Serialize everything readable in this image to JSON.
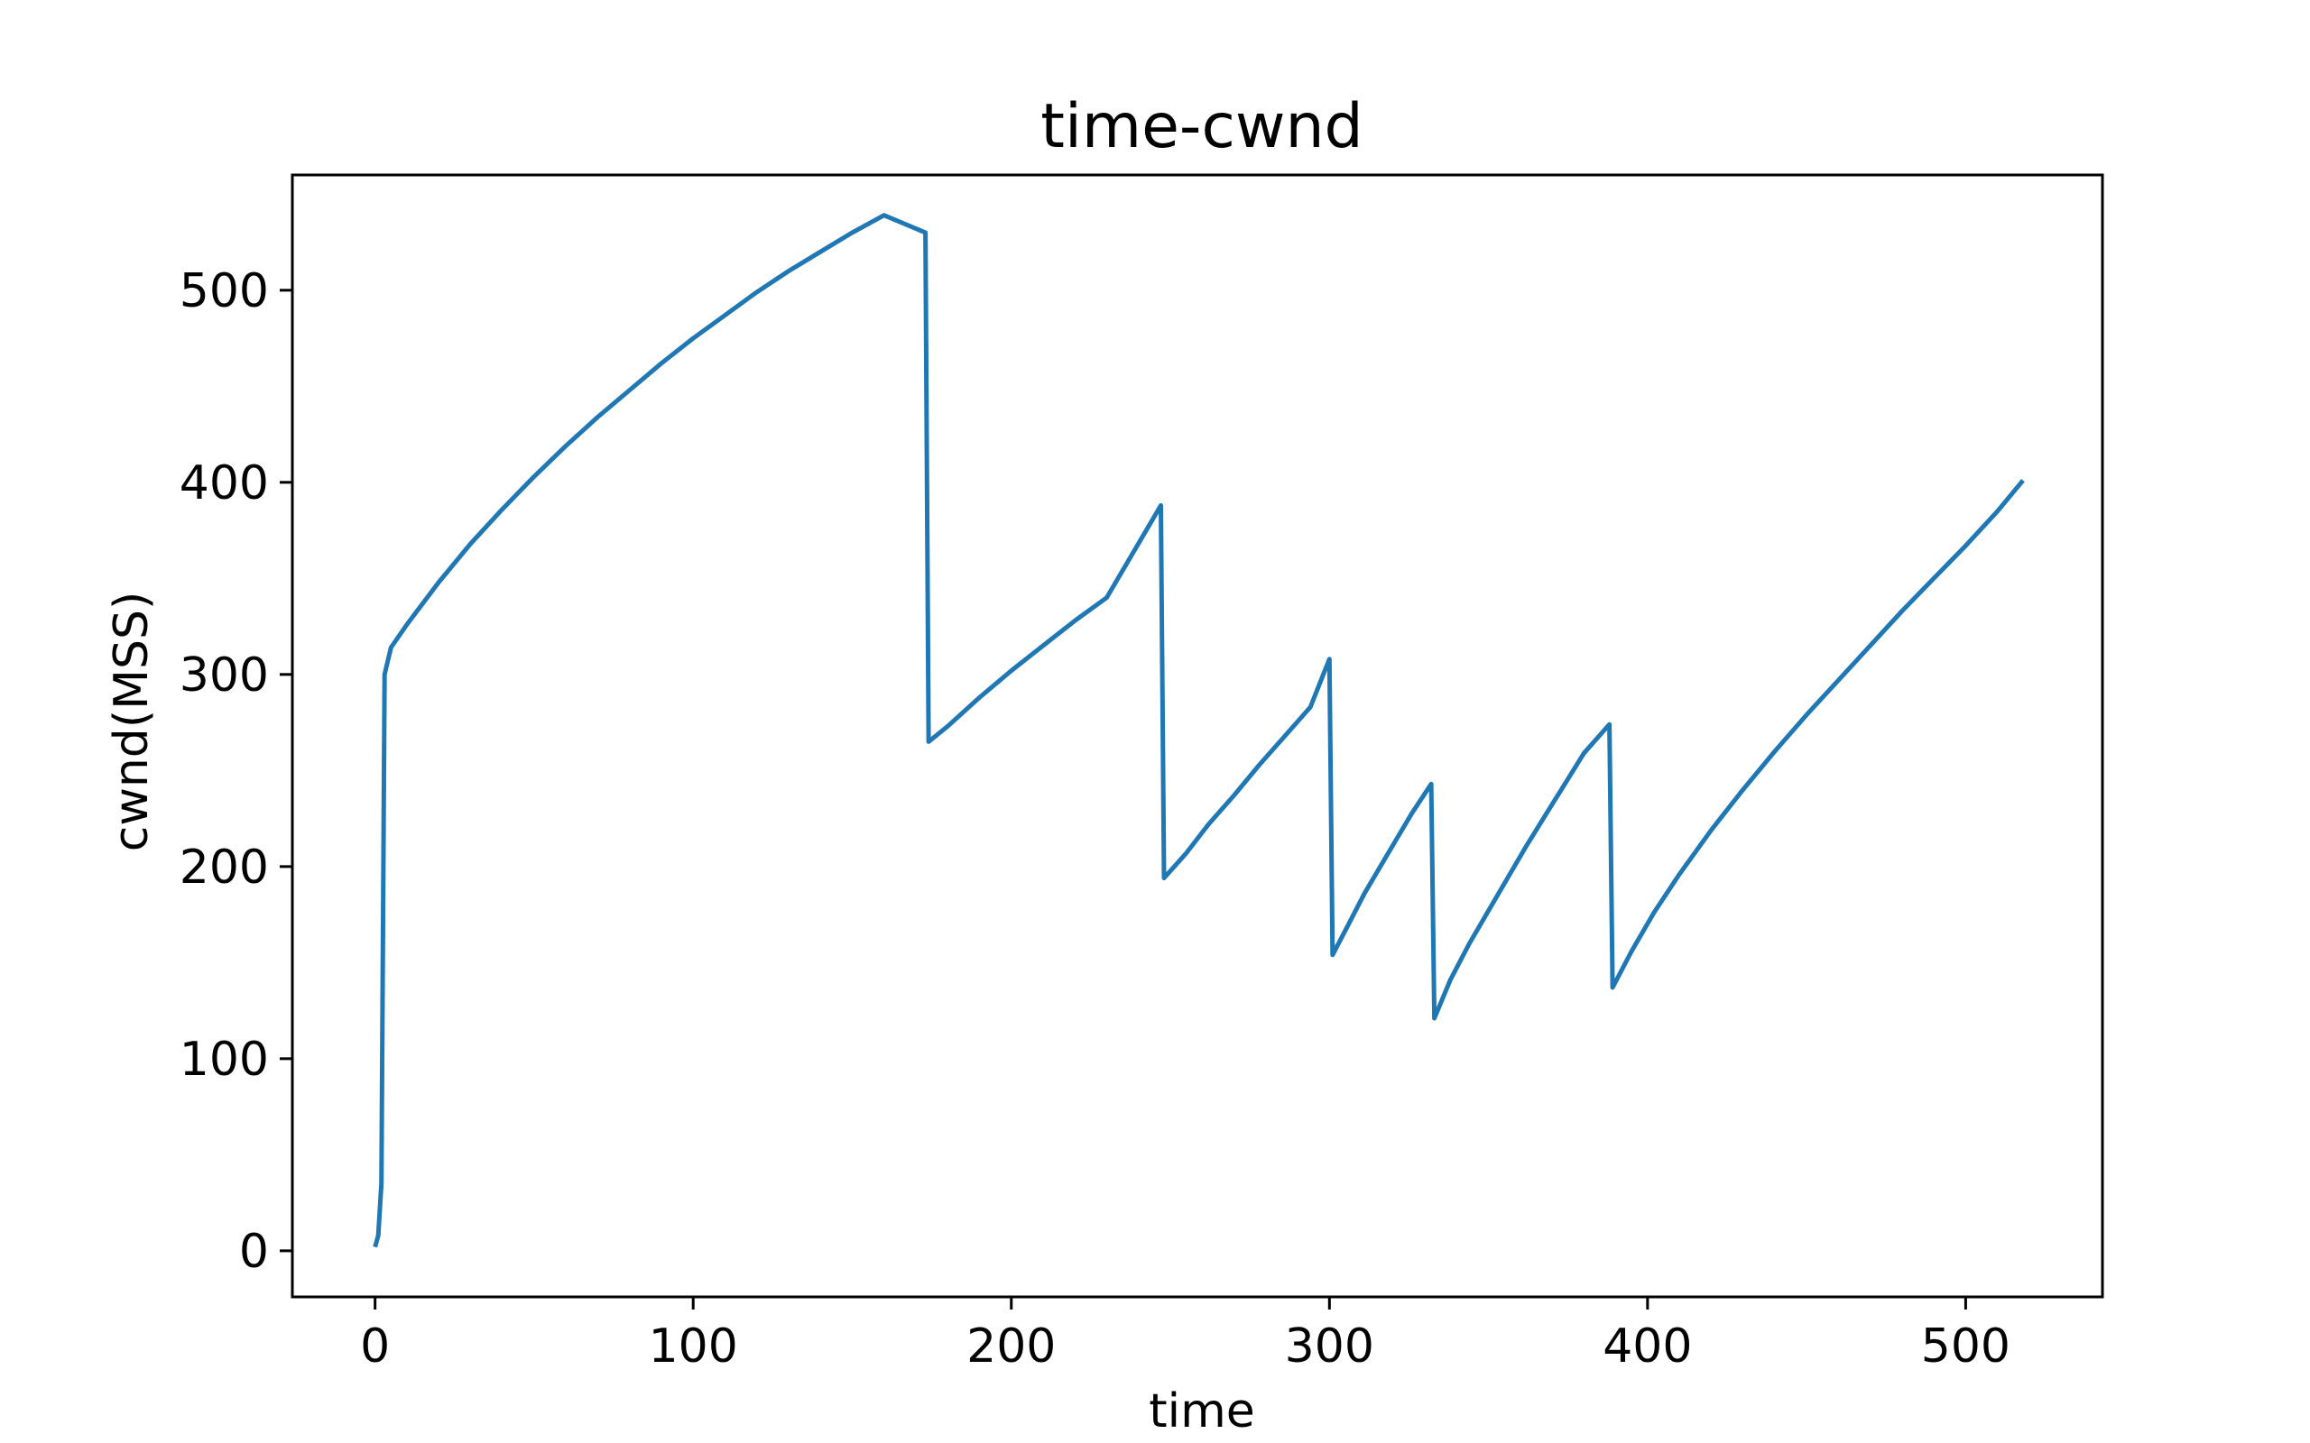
{
  "chart_data": {
    "type": "line",
    "title": "time-cwnd",
    "xlabel": "time",
    "ylabel": "cwnd(MSS)",
    "xlim": [
      -26,
      543
    ],
    "ylim": [
      -24,
      560
    ],
    "xticks": [
      {
        "value": 0,
        "label": "0"
      },
      {
        "value": 100,
        "label": "100"
      },
      {
        "value": 200,
        "label": "200"
      },
      {
        "value": 300,
        "label": "300"
      },
      {
        "value": 400,
        "label": "400"
      },
      {
        "value": 500,
        "label": "500"
      }
    ],
    "yticks": [
      {
        "value": 0,
        "label": "0"
      },
      {
        "value": 100,
        "label": "100"
      },
      {
        "value": 200,
        "label": "200"
      },
      {
        "value": 300,
        "label": "300"
      },
      {
        "value": 400,
        "label": "400"
      },
      {
        "value": 500,
        "label": "500"
      }
    ],
    "grid": false,
    "series": [
      {
        "color": "#1f77b4",
        "x": [
          0,
          1,
          2,
          3,
          5,
          10,
          20,
          30,
          40,
          50,
          60,
          70,
          80,
          90,
          100,
          110,
          120,
          130,
          140,
          150,
          160,
          173,
          174,
          180,
          190,
          200,
          210,
          220,
          230,
          247,
          248,
          255,
          262,
          270,
          278,
          286,
          294,
          300,
          301,
          306,
          311,
          316,
          321,
          326,
          332,
          333,
          338,
          344,
          350,
          356,
          362,
          368,
          374,
          380,
          388,
          389,
          395,
          402,
          410,
          420,
          430,
          440,
          450,
          460,
          470,
          480,
          490,
          500,
          510,
          518
        ],
        "y": [
          2,
          8,
          35,
          300,
          314,
          326,
          348,
          368,
          386,
          403,
          419,
          434,
          448,
          462,
          475,
          487,
          499,
          510,
          520,
          530,
          539,
          530,
          265,
          273,
          288,
          302,
          315,
          328,
          340,
          388,
          194,
          207,
          222,
          237,
          253,
          268,
          283,
          308,
          154,
          170,
          186,
          200,
          214,
          228,
          243,
          121,
          141,
          160,
          177,
          194,
          211,
          227,
          243,
          259,
          274,
          137,
          156,
          176,
          196,
          219,
          240,
          260,
          279,
          297,
          315,
          333,
          350,
          367,
          385,
          401
        ]
      }
    ]
  }
}
